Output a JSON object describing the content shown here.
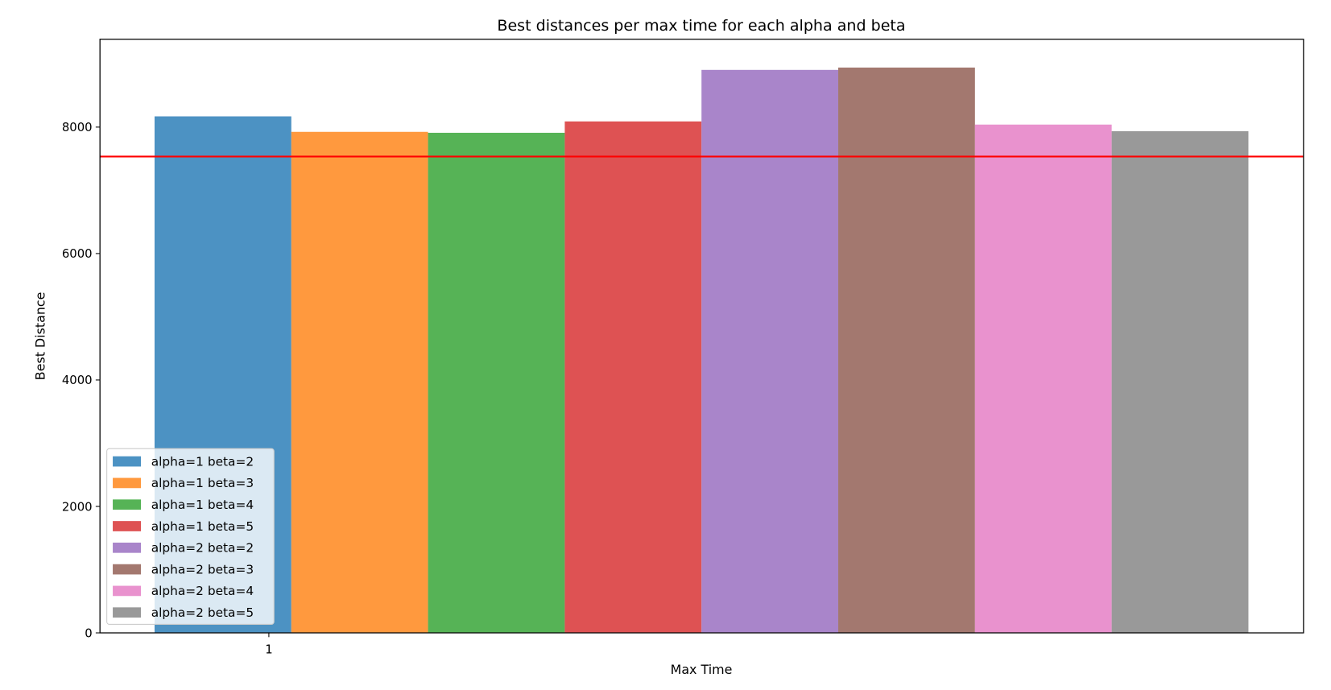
{
  "chart_data": {
    "type": "bar",
    "title": "Best distances per max time for each alpha and beta",
    "xlabel": "Max Time",
    "ylabel": "Best Distance",
    "categories": [
      "1"
    ],
    "ylim": [
      0,
      9390
    ],
    "yticks": [
      0,
      2000,
      4000,
      6000,
      8000
    ],
    "grid": false,
    "legend_placement": "lower-left",
    "bar_alpha": 0.8,
    "series": [
      {
        "name": "alpha=1 beta=2",
        "values": [
          8170
        ],
        "color": "#1f77b4"
      },
      {
        "name": "alpha=1 beta=3",
        "values": [
          7925
        ],
        "color": "#ff7f0e"
      },
      {
        "name": "alpha=1 beta=4",
        "values": [
          7910
        ],
        "color": "#2ca02c"
      },
      {
        "name": "alpha=1 beta=5",
        "values": [
          8090
        ],
        "color": "#d62728"
      },
      {
        "name": "alpha=2 beta=2",
        "values": [
          8905
        ],
        "color": "#9467bd"
      },
      {
        "name": "alpha=2 beta=3",
        "values": [
          8942
        ],
        "color": "#8c564b"
      },
      {
        "name": "alpha=2 beta=4",
        "values": [
          8040
        ],
        "color": "#e377c2"
      },
      {
        "name": "alpha=2 beta=5",
        "values": [
          7935
        ],
        "color": "#7f7f7f"
      }
    ],
    "reference_line": {
      "y": 7535,
      "color": "#ff0000"
    }
  }
}
